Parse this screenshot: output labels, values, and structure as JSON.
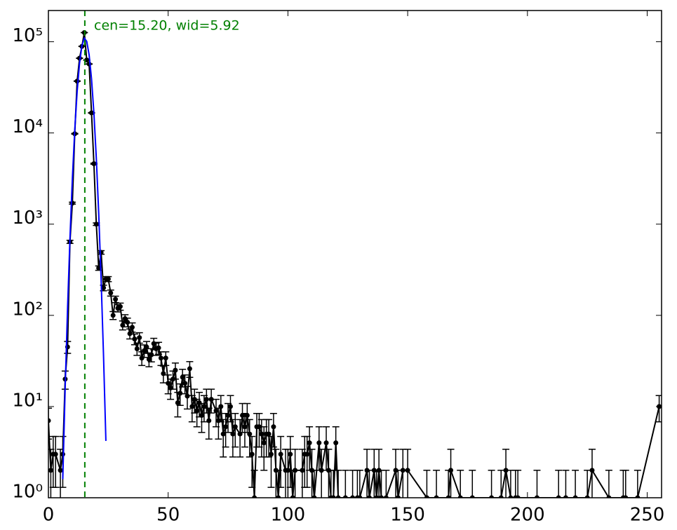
{
  "chart_data": {
    "type": "errorbar",
    "annotation": "cen=15.20, wid=5.92",
    "xlim": [
      0,
      256
    ],
    "xticks": [
      0,
      50,
      100,
      150,
      200,
      250
    ],
    "ylim": [
      1,
      220000
    ],
    "log_y": true,
    "yticks": [
      {
        "value": 1,
        "label": "10⁰"
      },
      {
        "value": 10,
        "label": "10¹"
      },
      {
        "value": 100,
        "label": "10²"
      },
      {
        "value": 1000,
        "label": "10³"
      },
      {
        "value": 10000,
        "label": "10⁴"
      },
      {
        "value": 100000,
        "label": "10⁵"
      }
    ],
    "center_line": {
      "x": 15.2,
      "color": "#008000"
    },
    "series": [
      {
        "color": "#000000",
        "x": [
          0,
          1,
          2,
          3,
          5,
          6,
          7,
          8,
          9,
          10,
          11,
          12,
          13,
          14,
          15,
          16,
          17,
          18,
          19,
          20,
          21,
          22,
          23,
          24,
          25,
          26,
          27,
          28,
          29,
          30,
          31,
          32,
          33,
          34,
          35,
          36,
          37,
          38,
          39,
          40,
          41,
          42,
          43,
          44,
          45,
          46,
          47,
          48,
          49,
          50,
          51,
          52,
          53,
          54,
          55,
          56,
          57,
          58,
          59,
          60,
          61,
          62,
          63,
          64,
          65,
          66,
          67,
          68,
          70,
          71,
          72,
          73,
          74,
          75,
          76,
          77,
          78,
          80,
          81,
          82,
          83,
          84,
          85,
          86,
          87,
          88,
          89,
          90,
          91,
          92,
          93,
          94,
          95,
          96,
          97,
          99,
          100,
          101,
          102,
          103,
          106,
          107,
          108,
          109,
          110,
          111,
          113,
          114,
          116,
          117,
          118,
          119,
          120,
          121,
          124,
          127,
          129,
          130,
          133,
          134,
          136,
          137,
          138,
          139,
          141,
          145,
          146,
          148,
          150,
          158,
          162,
          167,
          168,
          172,
          177,
          185,
          189,
          191,
          193,
          195,
          196,
          204,
          213,
          216,
          220,
          225,
          227,
          234,
          240,
          241,
          246,
          255
        ],
        "values": [
          7,
          2,
          3,
          3,
          2,
          3,
          20,
          45,
          640,
          1700,
          9800,
          37000,
          66000,
          89000,
          126000,
          63000,
          57000,
          16600,
          4600,
          1000,
          330,
          490,
          200,
          250,
          250,
          176,
          100,
          150,
          120,
          125,
          78,
          92,
          84,
          63,
          74,
          55,
          43,
          57,
          34,
          41,
          45,
          33,
          37,
          49,
          43,
          44,
          34,
          23,
          34,
          18,
          16,
          20,
          25,
          11,
          14,
          21,
          18,
          13,
          26,
          10,
          12,
          9,
          11,
          8,
          10,
          12,
          7,
          12,
          9,
          7,
          10,
          5,
          6,
          8,
          10,
          5,
          6,
          5,
          8,
          6,
          8,
          5,
          3,
          1,
          6,
          6,
          5,
          4,
          5,
          5,
          3,
          6,
          2,
          1,
          3,
          2,
          2,
          3,
          1,
          2,
          2,
          3,
          3,
          4,
          2,
          1,
          4,
          2,
          4,
          2,
          1,
          1,
          4,
          1,
          1,
          1,
          1,
          1,
          2,
          1,
          2,
          1,
          2,
          1,
          1,
          2,
          1,
          2,
          2,
          1,
          1,
          1,
          2,
          1,
          1,
          1,
          1,
          2,
          1,
          1,
          1,
          1,
          1,
          1,
          1,
          1,
          2,
          1,
          1,
          1,
          1,
          10
        ],
        "errors": [
          2.6,
          1.4,
          1.7,
          1.7,
          1.4,
          1.7,
          4.5,
          6.7,
          25.3,
          41.2,
          99,
          192.4,
          256.9,
          298.3,
          355,
          251,
          238.7,
          128.8,
          67.8,
          31.6,
          18.2,
          22.1,
          14.1,
          15.8,
          15.8,
          13.3,
          10,
          12.2,
          11,
          11.2,
          8.8,
          9.6,
          9.2,
          7.9,
          8.6,
          7.4,
          6.6,
          7.5,
          5.8,
          6.4,
          6.7,
          5.7,
          6.1,
          7,
          6.6,
          6.6,
          5.8,
          4.8,
          5.8,
          4.2,
          4,
          4.5,
          5,
          3.3,
          3.7,
          4.6,
          4.2,
          3.6,
          5.1,
          3.2,
          3.5,
          3,
          3.3,
          2.8,
          3.2,
          3.5,
          2.6,
          3.5,
          3,
          2.6,
          3.2,
          2.2,
          2.4,
          2.8,
          3.2,
          2.2,
          2.4,
          2.2,
          2.8,
          2.4,
          2.8,
          2.2,
          1.7,
          1,
          2.4,
          2.4,
          2.2,
          2,
          2.2,
          2.2,
          1.7,
          2.4,
          1.4,
          1,
          1.7,
          1.4,
          1.4,
          1.7,
          1,
          1.4,
          1.4,
          1.7,
          1.7,
          2,
          1.4,
          1,
          2,
          1.4,
          2,
          1.4,
          1,
          1,
          2,
          1,
          1,
          1,
          1,
          1,
          1.4,
          1,
          1.4,
          1,
          1.4,
          1,
          1,
          1.4,
          1,
          1.4,
          1.4,
          1,
          1,
          1,
          1.4,
          1,
          1,
          1,
          1,
          1.4,
          1,
          1,
          1,
          1,
          1,
          1,
          1,
          1,
          1.4,
          1,
          1,
          1,
          1,
          3.2
        ]
      },
      {
        "color": "#0000ff",
        "x": [
          6,
          7,
          8,
          9,
          10,
          11,
          12,
          13,
          14,
          15,
          16,
          17,
          18,
          19,
          20,
          21,
          22,
          23,
          24
        ],
        "values": [
          1.6,
          16,
          120,
          700,
          3130,
          10800,
          28500,
          58100,
          91000,
          109400,
          101000,
          71800,
          39200,
          16400,
          5300,
          1320,
          250,
          37,
          4.2
        ]
      }
    ]
  }
}
